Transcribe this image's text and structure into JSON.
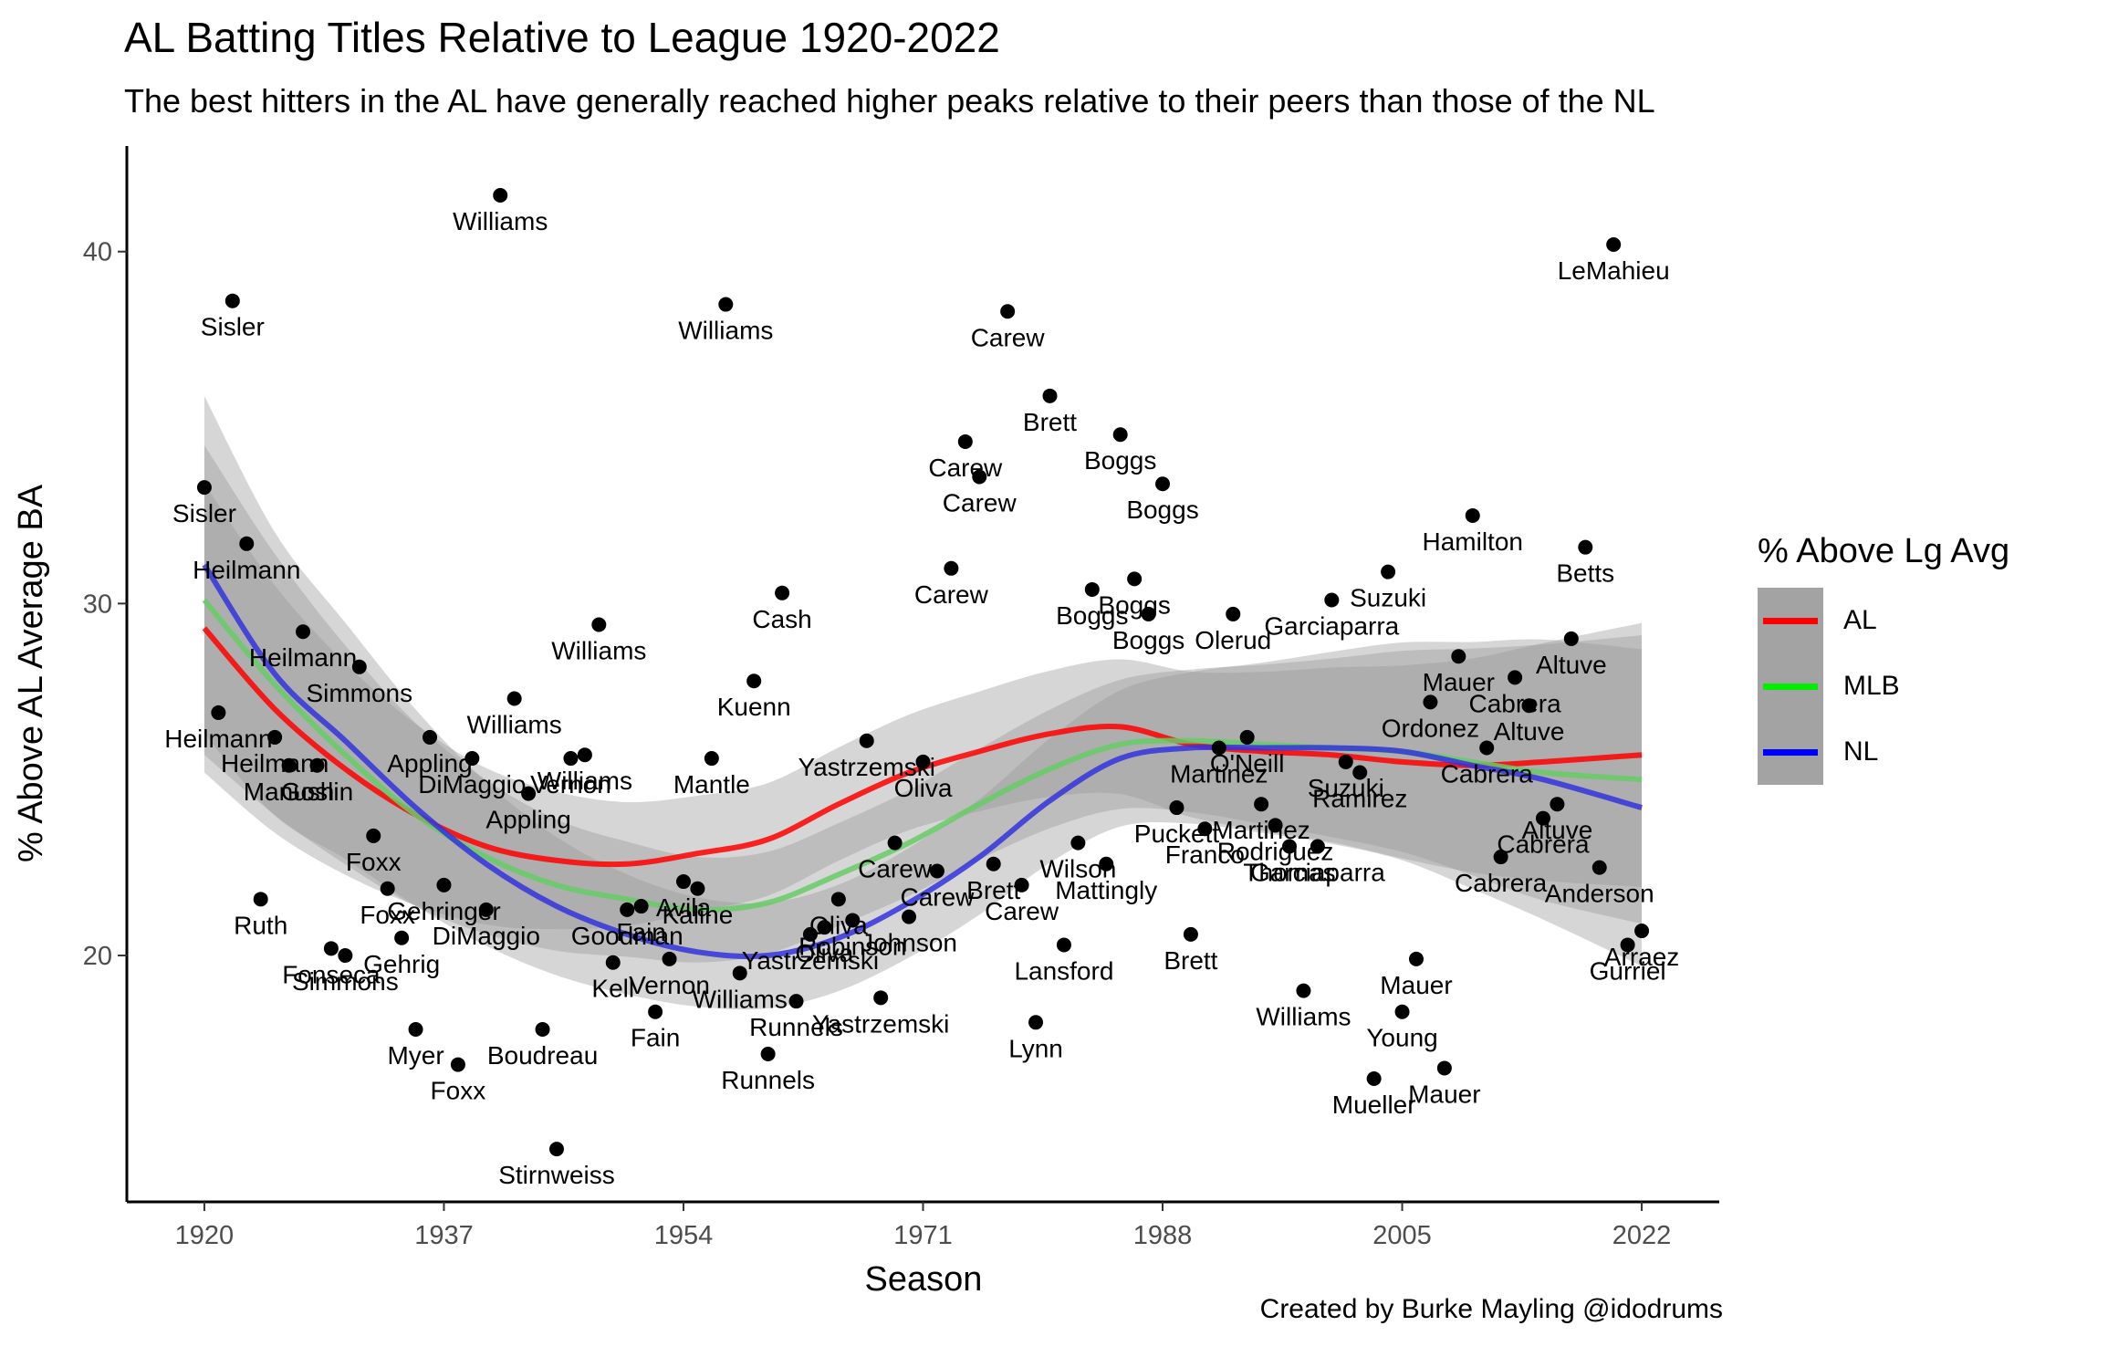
{
  "title": "AL Batting Titles Relative to League 1920-2022",
  "subtitle": "The best hitters in the AL have generally reached higher peaks relative to their peers than those of the NL",
  "caption": "Created by Burke Mayling @idodrums",
  "legend": {
    "title": "% Above Lg Avg",
    "items": [
      {
        "label": "AL",
        "color": "#ff0000"
      },
      {
        "label": "MLB",
        "color": "#00ee00"
      },
      {
        "label": "NL",
        "color": "#0000ff"
      }
    ]
  },
  "chart_data": {
    "type": "scatter",
    "xlabel": "Season",
    "ylabel": "% Above AL Average BA",
    "xlim": [
      1914.5,
      2027.5
    ],
    "ylim": [
      13.0,
      43.0
    ],
    "xticks": [
      1920,
      1937,
      1954,
      1971,
      1988,
      2005,
      2022
    ],
    "yticks": [
      20,
      30,
      40
    ],
    "point_color": "#000000",
    "points": [
      {
        "x": 1920,
        "y": 33.3,
        "label": "Sisler"
      },
      {
        "x": 1921,
        "y": 26.9,
        "label": "Heilmann"
      },
      {
        "x": 1922,
        "y": 38.6,
        "label": "Sisler"
      },
      {
        "x": 1923,
        "y": 31.7,
        "label": "Heilmann"
      },
      {
        "x": 1924,
        "y": 21.6,
        "label": "Ruth"
      },
      {
        "x": 1925,
        "y": 26.2,
        "label": "Heilmann"
      },
      {
        "x": 1926,
        "y": 25.4,
        "label": "Manush"
      },
      {
        "x": 1927,
        "y": 29.2,
        "label": "Heilmann"
      },
      {
        "x": 1928,
        "y": 25.4,
        "label": "Goslin"
      },
      {
        "x": 1929,
        "y": 20.2,
        "label": "Fonseca"
      },
      {
        "x": 1930,
        "y": 20.0,
        "label": "Simmons"
      },
      {
        "x": 1931,
        "y": 28.2,
        "label": "Simmons"
      },
      {
        "x": 1932,
        "y": 23.4,
        "label": "Foxx"
      },
      {
        "x": 1933,
        "y": 21.9,
        "label": "Foxx"
      },
      {
        "x": 1934,
        "y": 20.5,
        "label": "Gehrig"
      },
      {
        "x": 1935,
        "y": 17.9,
        "label": "Myer"
      },
      {
        "x": 1936,
        "y": 26.2,
        "label": "Appling"
      },
      {
        "x": 1937,
        "y": 22.0,
        "label": "Gehringer"
      },
      {
        "x": 1938,
        "y": 16.9,
        "label": "Foxx"
      },
      {
        "x": 1939,
        "y": 25.6,
        "label": "DiMaggio"
      },
      {
        "x": 1940,
        "y": 21.3,
        "label": "DiMaggio"
      },
      {
        "x": 1941,
        "y": 41.6,
        "label": "Williams"
      },
      {
        "x": 1942,
        "y": 27.3,
        "label": "Williams"
      },
      {
        "x": 1943,
        "y": 24.6,
        "label": "Appling"
      },
      {
        "x": 1944,
        "y": 17.9,
        "label": "Boudreau"
      },
      {
        "x": 1945,
        "y": 14.5,
        "label": "Stirnweiss"
      },
      {
        "x": 1946,
        "y": 25.6,
        "label": "Vernon"
      },
      {
        "x": 1947,
        "y": 25.7,
        "label": "Williams"
      },
      {
        "x": 1948,
        "y": 29.4,
        "label": "Williams"
      },
      {
        "x": 1949,
        "y": 19.8,
        "label": "Kell"
      },
      {
        "x": 1950,
        "y": 21.3,
        "label": "Goodman"
      },
      {
        "x": 1951,
        "y": 21.4,
        "label": "Fain"
      },
      {
        "x": 1952,
        "y": 18.4,
        "label": "Fain"
      },
      {
        "x": 1953,
        "y": 19.9,
        "label": "Vernon"
      },
      {
        "x": 1954,
        "y": 22.1,
        "label": "Avila"
      },
      {
        "x": 1955,
        "y": 21.9,
        "label": "Kaline"
      },
      {
        "x": 1956,
        "y": 25.6,
        "label": "Mantle"
      },
      {
        "x": 1957,
        "y": 38.5,
        "label": "Williams"
      },
      {
        "x": 1958,
        "y": 19.5,
        "label": "Williams"
      },
      {
        "x": 1959,
        "y": 27.8,
        "label": "Kuenn"
      },
      {
        "x": 1960,
        "y": 17.2,
        "label": "Runnels"
      },
      {
        "x": 1961,
        "y": 30.3,
        "label": "Cash"
      },
      {
        "x": 1962,
        "y": 18.7,
        "label": "Runnels"
      },
      {
        "x": 1963,
        "y": 20.6,
        "label": "Yastrzemski"
      },
      {
        "x": 1964,
        "y": 20.8,
        "label": "Oliva"
      },
      {
        "x": 1965,
        "y": 21.6,
        "label": "Oliva"
      },
      {
        "x": 1966,
        "y": 21.0,
        "label": "Robinson"
      },
      {
        "x": 1967,
        "y": 26.1,
        "label": "Yastrzemski"
      },
      {
        "x": 1968,
        "y": 18.8,
        "label": "Yastrzemski"
      },
      {
        "x": 1969,
        "y": 23.2,
        "label": "Carew"
      },
      {
        "x": 1970,
        "y": 21.1,
        "label": "Johnson"
      },
      {
        "x": 1971,
        "y": 25.5,
        "label": "Oliva"
      },
      {
        "x": 1972,
        "y": 22.4,
        "label": "Carew"
      },
      {
        "x": 1973,
        "y": 31.0,
        "label": "Carew"
      },
      {
        "x": 1974,
        "y": 34.6,
        "label": "Carew"
      },
      {
        "x": 1975,
        "y": 33.6,
        "label": "Carew"
      },
      {
        "x": 1976,
        "y": 22.6,
        "label": "Brett"
      },
      {
        "x": 1977,
        "y": 38.3,
        "label": "Carew"
      },
      {
        "x": 1978,
        "y": 22.0,
        "label": "Carew"
      },
      {
        "x": 1979,
        "y": 18.1,
        "label": "Lynn"
      },
      {
        "x": 1980,
        "y": 35.9,
        "label": "Brett"
      },
      {
        "x": 1981,
        "y": 20.3,
        "label": "Lansford"
      },
      {
        "x": 1982,
        "y": 23.2,
        "label": "Wilson"
      },
      {
        "x": 1983,
        "y": 30.4,
        "label": "Boggs"
      },
      {
        "x": 1984,
        "y": 22.6,
        "label": "Mattingly"
      },
      {
        "x": 1985,
        "y": 34.8,
        "label": "Boggs"
      },
      {
        "x": 1986,
        "y": 30.7,
        "label": "Boggs"
      },
      {
        "x": 1987,
        "y": 29.7,
        "label": "Boggs"
      },
      {
        "x": 1988,
        "y": 33.4,
        "label": "Boggs"
      },
      {
        "x": 1989,
        "y": 24.2,
        "label": "Puckett"
      },
      {
        "x": 1990,
        "y": 20.6,
        "label": "Brett"
      },
      {
        "x": 1991,
        "y": 23.6,
        "label": "Franco"
      },
      {
        "x": 1992,
        "y": 25.9,
        "label": "Martinez"
      },
      {
        "x": 1993,
        "y": 29.7,
        "label": "Olerud"
      },
      {
        "x": 1994,
        "y": 26.2,
        "label": "O'Neill"
      },
      {
        "x": 1995,
        "y": 24.3,
        "label": "Martinez"
      },
      {
        "x": 1996,
        "y": 23.7,
        "label": "Rodriguez"
      },
      {
        "x": 1997,
        "y": 23.1,
        "label": "Thomas"
      },
      {
        "x": 1998,
        "y": 19.0,
        "label": "Williams"
      },
      {
        "x": 1999,
        "y": 23.1,
        "label": "Garciaparra"
      },
      {
        "x": 2000,
        "y": 30.1,
        "label": "Garciaparra"
      },
      {
        "x": 2001,
        "y": 25.5,
        "label": "Suzuki"
      },
      {
        "x": 2002,
        "y": 25.2,
        "label": "Ramirez"
      },
      {
        "x": 2003,
        "y": 16.5,
        "label": "Mueller"
      },
      {
        "x": 2004,
        "y": 30.9,
        "label": "Suzuki"
      },
      {
        "x": 2005,
        "y": 18.4,
        "label": "Young"
      },
      {
        "x": 2006,
        "y": 19.9,
        "label": "Mauer"
      },
      {
        "x": 2007,
        "y": 27.2,
        "label": "Ordonez"
      },
      {
        "x": 2008,
        "y": 16.8,
        "label": "Mauer"
      },
      {
        "x": 2009,
        "y": 28.5,
        "label": "Mauer"
      },
      {
        "x": 2010,
        "y": 32.5,
        "label": "Hamilton"
      },
      {
        "x": 2011,
        "y": 25.9,
        "label": "Cabrera"
      },
      {
        "x": 2012,
        "y": 22.8,
        "label": "Cabrera"
      },
      {
        "x": 2013,
        "y": 27.9,
        "label": "Cabrera"
      },
      {
        "x": 2014,
        "y": 27.1,
        "label": "Altuve"
      },
      {
        "x": 2015,
        "y": 23.9,
        "label": "Cabrera"
      },
      {
        "x": 2016,
        "y": 24.3,
        "label": "Altuve"
      },
      {
        "x": 2017,
        "y": 29.0,
        "label": "Altuve"
      },
      {
        "x": 2018,
        "y": 31.6,
        "label": "Betts"
      },
      {
        "x": 2019,
        "y": 22.5,
        "label": "Anderson"
      },
      {
        "x": 2020,
        "y": 40.2,
        "label": "LeMahieu"
      },
      {
        "x": 2021,
        "y": 20.3,
        "label": "Gurriel"
      },
      {
        "x": 2022,
        "y": 20.7,
        "label": "Arraez"
      }
    ],
    "smooth_lines": [
      {
        "name": "AL",
        "color": "#ff0000",
        "x": [
          1920,
          1925,
          1930,
          1935,
          1940,
          1945,
          1950,
          1955,
          1960,
          1965,
          1970,
          1975,
          1980,
          1985,
          1990,
          1995,
          2000,
          2005,
          2010,
          2015,
          2022
        ],
        "y": [
          29.3,
          27.0,
          25.3,
          24.0,
          23.1,
          22.7,
          22.6,
          22.9,
          23.3,
          24.3,
          25.2,
          25.8,
          26.3,
          26.5,
          26.0,
          25.8,
          25.7,
          25.5,
          25.4,
          25.5,
          25.7
        ],
        "band": [
          [
            26.0,
            34.2
          ],
          [
            21.1,
            24.3
          ],
          [
            21.8,
            29.3
          ]
        ]
      },
      {
        "name": "MLB",
        "color": "#66cc66",
        "x": [
          1920,
          1925,
          1930,
          1935,
          1940,
          1945,
          1950,
          1955,
          1960,
          1965,
          1970,
          1975,
          1980,
          1985,
          1990,
          1995,
          2000,
          2005,
          2010,
          2015,
          2022
        ],
        "y": [
          30.1,
          27.7,
          25.7,
          24.0,
          22.8,
          22.0,
          21.6,
          21.3,
          21.5,
          22.3,
          23.2,
          24.3,
          25.3,
          26.0,
          26.1,
          26.0,
          25.9,
          25.8,
          25.5,
          25.2,
          25.0
        ],
        "band": [
          [
            25.9,
            34.7
          ],
          [
            20.0,
            22.9
          ],
          [
            21.2,
            29.4
          ]
        ]
      },
      {
        "name": "NL",
        "color": "#3333dd",
        "x": [
          1920,
          1925,
          1930,
          1935,
          1940,
          1945,
          1950,
          1955,
          1960,
          1965,
          1970,
          1975,
          1980,
          1985,
          1990,
          1995,
          2000,
          2005,
          2010,
          2015,
          2022
        ],
        "y": [
          31.1,
          28.0,
          26.1,
          24.2,
          22.6,
          21.4,
          20.6,
          20.1,
          20.0,
          20.5,
          21.5,
          22.8,
          24.4,
          25.6,
          25.9,
          25.9,
          25.9,
          25.8,
          25.4,
          25.0,
          24.2
        ],
        "band": [
          [
            26.3,
            35.9
          ],
          [
            18.5,
            21.5
          ],
          [
            19.8,
            28.8
          ]
        ]
      }
    ]
  }
}
